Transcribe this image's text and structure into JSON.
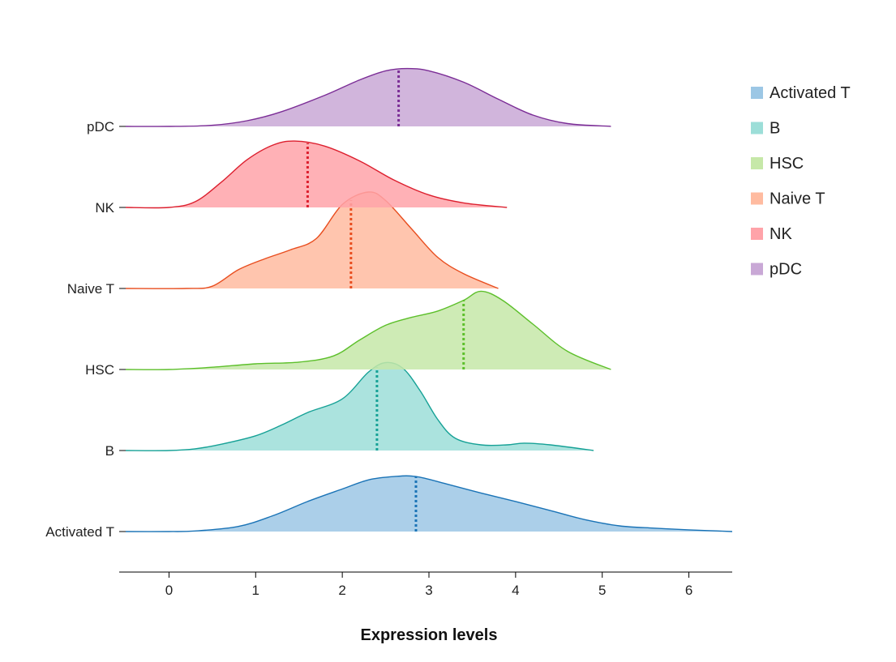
{
  "chart_data": {
    "type": "ridgeline",
    "xlabel": "Expression levels",
    "xlim": [
      -0.5,
      6.5
    ],
    "x_ticks": [
      "0",
      "1",
      "2",
      "3",
      "4",
      "5",
      "6"
    ],
    "categories": [
      "Activated T",
      "B",
      "HSC",
      "Naive T",
      "NK",
      "pDC"
    ],
    "legend": {
      "placement": "right",
      "items": [
        "Activated T",
        "B",
        "HSC",
        "Naive T",
        "NK",
        "pDC"
      ]
    },
    "series": [
      {
        "name": "Activated T",
        "fill": "#9cc7e5",
        "stroke": "#1a73b6",
        "median": 2.85,
        "density": [
          [
            -0.5,
            0
          ],
          [
            0,
            0
          ],
          [
            0.3,
            0.01
          ],
          [
            0.8,
            0.09
          ],
          [
            1.2,
            0.28
          ],
          [
            1.6,
            0.53
          ],
          [
            2.0,
            0.75
          ],
          [
            2.3,
            0.91
          ],
          [
            2.6,
            0.97
          ],
          [
            2.85,
            0.97
          ],
          [
            3.2,
            0.84
          ],
          [
            3.6,
            0.68
          ],
          [
            4.0,
            0.53
          ],
          [
            4.4,
            0.37
          ],
          [
            4.8,
            0.21
          ],
          [
            5.2,
            0.1
          ],
          [
            5.6,
            0.06
          ],
          [
            6.0,
            0.03
          ],
          [
            6.5,
            0
          ]
        ]
      },
      {
        "name": "B",
        "fill": "#9cded8",
        "stroke": "#16a196",
        "median": 2.4,
        "density": [
          [
            -0.5,
            0
          ],
          [
            0,
            0
          ],
          [
            0.3,
            0.03
          ],
          [
            0.6,
            0.11
          ],
          [
            1.0,
            0.26
          ],
          [
            1.3,
            0.45
          ],
          [
            1.6,
            0.67
          ],
          [
            2.0,
            0.91
          ],
          [
            2.3,
            1.38
          ],
          [
            2.5,
            1.55
          ],
          [
            2.7,
            1.45
          ],
          [
            2.9,
            1.05
          ],
          [
            3.1,
            0.55
          ],
          [
            3.3,
            0.22
          ],
          [
            3.6,
            0.1
          ],
          [
            3.9,
            0.1
          ],
          [
            4.1,
            0.13
          ],
          [
            4.4,
            0.1
          ],
          [
            4.9,
            0
          ]
        ]
      },
      {
        "name": "HSC",
        "fill": "#c6e8a8",
        "stroke": "#5cbf2a",
        "median": 3.4,
        "density": [
          [
            -0.5,
            0
          ],
          [
            0,
            0
          ],
          [
            0.5,
            0.04
          ],
          [
            1.0,
            0.1
          ],
          [
            1.5,
            0.13
          ],
          [
            1.9,
            0.24
          ],
          [
            2.2,
            0.52
          ],
          [
            2.5,
            0.78
          ],
          [
            2.8,
            0.92
          ],
          [
            3.1,
            1.03
          ],
          [
            3.4,
            1.22
          ],
          [
            3.6,
            1.38
          ],
          [
            3.85,
            1.22
          ],
          [
            4.2,
            0.8
          ],
          [
            4.6,
            0.32
          ],
          [
            5.1,
            0
          ]
        ]
      },
      {
        "name": "Naive T",
        "fill": "#ffbba0",
        "stroke": "#e84d1e",
        "median": 2.1,
        "density": [
          [
            -0.5,
            0
          ],
          [
            0.2,
            0
          ],
          [
            0.5,
            0.04
          ],
          [
            0.8,
            0.33
          ],
          [
            1.1,
            0.52
          ],
          [
            1.4,
            0.68
          ],
          [
            1.7,
            0.88
          ],
          [
            2.0,
            1.48
          ],
          [
            2.3,
            1.7
          ],
          [
            2.5,
            1.55
          ],
          [
            2.8,
            1.05
          ],
          [
            3.1,
            0.55
          ],
          [
            3.4,
            0.26
          ],
          [
            3.8,
            0
          ]
        ]
      },
      {
        "name": "NK",
        "fill": "#ffa3a9",
        "stroke": "#dc1f2e",
        "median": 1.6,
        "density": [
          [
            -0.5,
            0
          ],
          [
            0,
            0
          ],
          [
            0.3,
            0.1
          ],
          [
            0.6,
            0.44
          ],
          [
            0.9,
            0.84
          ],
          [
            1.2,
            1.1
          ],
          [
            1.45,
            1.17
          ],
          [
            1.8,
            1.08
          ],
          [
            2.2,
            0.82
          ],
          [
            2.6,
            0.48
          ],
          [
            3.0,
            0.22
          ],
          [
            3.4,
            0.08
          ],
          [
            3.9,
            0
          ]
        ]
      },
      {
        "name": "pDC",
        "fill": "#c9a8d6",
        "stroke": "#7b2d96",
        "median": 2.65,
        "density": [
          [
            -0.5,
            0
          ],
          [
            0,
            0
          ],
          [
            0.5,
            0.02
          ],
          [
            0.9,
            0.1
          ],
          [
            1.3,
            0.26
          ],
          [
            1.8,
            0.55
          ],
          [
            2.2,
            0.82
          ],
          [
            2.5,
            0.98
          ],
          [
            2.75,
            1.02
          ],
          [
            3.0,
            0.98
          ],
          [
            3.4,
            0.78
          ],
          [
            3.8,
            0.48
          ],
          [
            4.2,
            0.2
          ],
          [
            4.6,
            0.05
          ],
          [
            5.1,
            0
          ]
        ]
      }
    ]
  }
}
